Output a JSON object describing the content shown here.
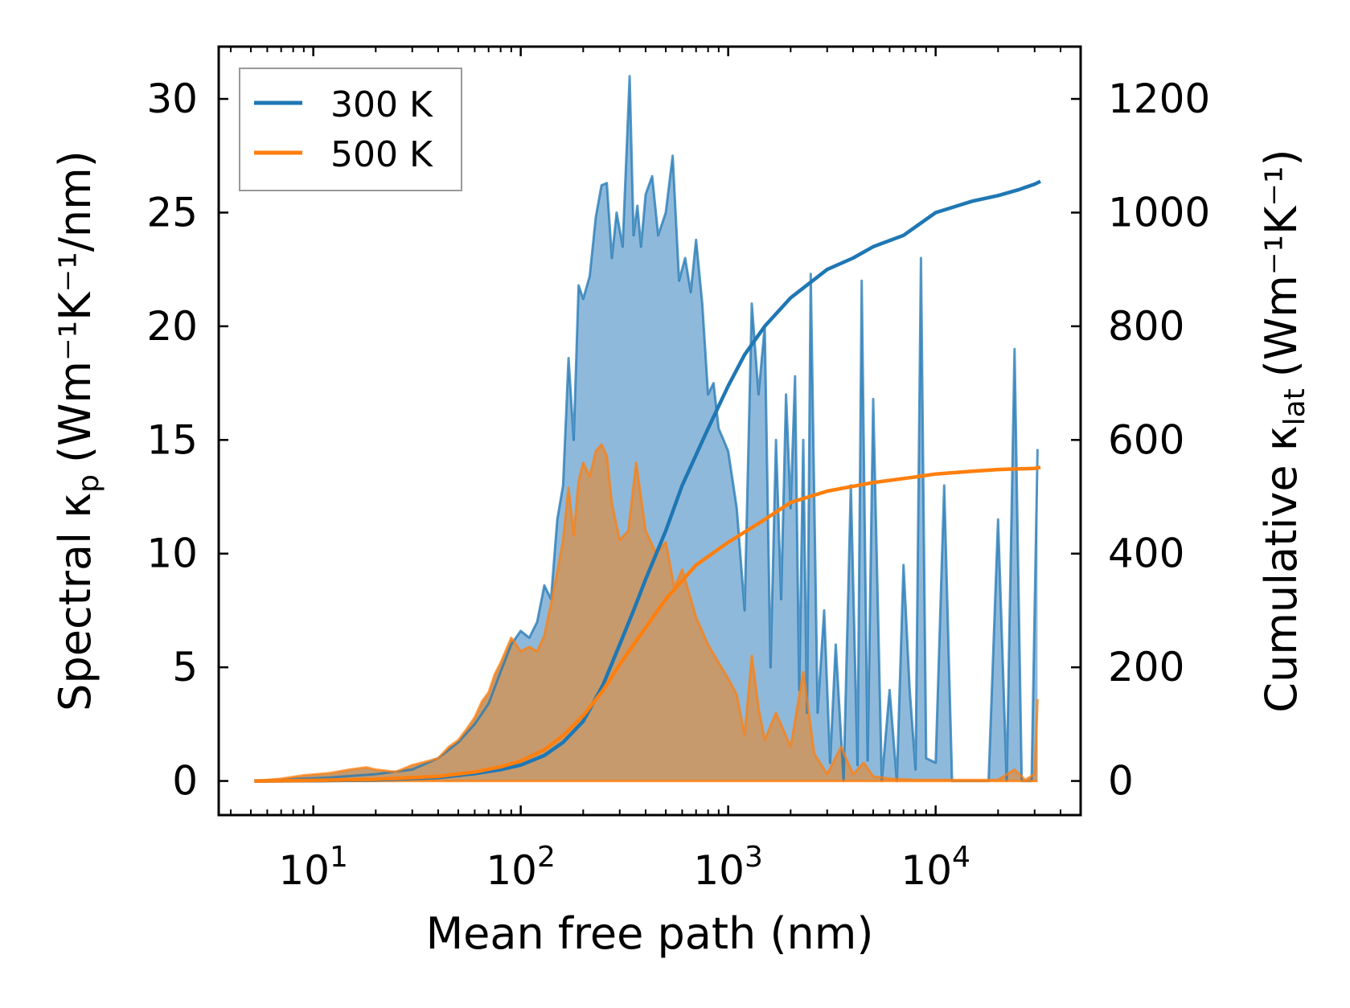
{
  "chart_data": {
    "type": "line",
    "xscale": "log",
    "xlabel": "Mean free path (nm)",
    "ylabel_left_main": "Spectral κ",
    "ylabel_left_sub": "p",
    "ylabel_left_units": "(Wm⁻¹K⁻¹/nm)",
    "ylabel_right_main": "Cumulative κ",
    "ylabel_right_sub": "lat",
    "ylabel_right_units": "(Wm⁻¹K⁻¹)",
    "xlim": [
      3.5,
      50000
    ],
    "ylim_left": [
      -1.5,
      32.3
    ],
    "ylim_right": [
      -60,
      1292
    ],
    "x_ticks": [
      {
        "value": 10,
        "base": "10",
        "exp": "1"
      },
      {
        "value": 100,
        "base": "10",
        "exp": "2"
      },
      {
        "value": 1000,
        "base": "10",
        "exp": "3"
      },
      {
        "value": 10000,
        "base": "10",
        "exp": "4"
      }
    ],
    "left_ticks": [
      0,
      5,
      10,
      15,
      20,
      25,
      30
    ],
    "right_ticks": [
      0,
      200,
      400,
      600,
      800,
      1000,
      1200
    ],
    "legend": {
      "position": "upper-left",
      "entries": [
        {
          "label": "300 K",
          "color": "#1f77b4"
        },
        {
          "label": "500 K",
          "color": "#ff7f0e"
        }
      ]
    },
    "series": [
      {
        "name": "300 K",
        "color": "#1f77b4",
        "spectral": [
          [
            5.2,
            0
          ],
          [
            8,
            0.08
          ],
          [
            12,
            0.15
          ],
          [
            20,
            0.3
          ],
          [
            30,
            0.5
          ],
          [
            40,
            1.0
          ],
          [
            50,
            1.7
          ],
          [
            60,
            2.5
          ],
          [
            70,
            3.4
          ],
          [
            80,
            4.8
          ],
          [
            90,
            6.0
          ],
          [
            100,
            6.6
          ],
          [
            110,
            6.3
          ],
          [
            120,
            7.0
          ],
          [
            130,
            8.6
          ],
          [
            140,
            8.0
          ],
          [
            150,
            11.5
          ],
          [
            160,
            13.0
          ],
          [
            170,
            18.6
          ],
          [
            180,
            15.0
          ],
          [
            190,
            21.8
          ],
          [
            200,
            21.2
          ],
          [
            215,
            22.2
          ],
          [
            230,
            24.8
          ],
          [
            245,
            26.2
          ],
          [
            260,
            26.3
          ],
          [
            275,
            23.0
          ],
          [
            290,
            25.0
          ],
          [
            310,
            23.5
          ],
          [
            335,
            31.0
          ],
          [
            350,
            24.0
          ],
          [
            365,
            25.3
          ],
          [
            380,
            23.5
          ],
          [
            400,
            25.8
          ],
          [
            430,
            26.6
          ],
          [
            460,
            24.0
          ],
          [
            500,
            25.0
          ],
          [
            540,
            27.5
          ],
          [
            580,
            22.0
          ],
          [
            620,
            23.0
          ],
          [
            660,
            21.5
          ],
          [
            700,
            23.8
          ],
          [
            750,
            21.0
          ],
          [
            800,
            17.0
          ],
          [
            850,
            17.5
          ],
          [
            900,
            15.5
          ],
          [
            950,
            15.0
          ],
          [
            1000,
            14.5
          ],
          [
            1100,
            12.0
          ],
          [
            1200,
            7.5
          ],
          [
            1300,
            21.0
          ],
          [
            1400,
            17.0
          ],
          [
            1500,
            20.0
          ],
          [
            1600,
            5.0
          ],
          [
            1700,
            15.0
          ],
          [
            1800,
            8.0
          ],
          [
            1900,
            17.0
          ],
          [
            2000,
            12.0
          ],
          [
            2100,
            17.8
          ],
          [
            2200,
            4.0
          ],
          [
            2300,
            15.0
          ],
          [
            2400,
            3.0
          ],
          [
            2500,
            22.3
          ],
          [
            2700,
            3.0
          ],
          [
            2900,
            7.5
          ],
          [
            3100,
            0.8
          ],
          [
            3300,
            6.0
          ],
          [
            3600,
            0
          ],
          [
            3900,
            13.0
          ],
          [
            4200,
            0.7
          ],
          [
            4400,
            22.0
          ],
          [
            4700,
            0.9
          ],
          [
            5000,
            16.8
          ],
          [
            5500,
            0
          ],
          [
            6000,
            4.0
          ],
          [
            6500,
            0
          ],
          [
            7000,
            9.5
          ],
          [
            7500,
            4.0
          ],
          [
            8000,
            0.5
          ],
          [
            8500,
            23.0
          ],
          [
            9000,
            1.0
          ],
          [
            10000,
            0.8
          ],
          [
            11000,
            13.0
          ],
          [
            12000,
            0
          ],
          [
            15000,
            0
          ],
          [
            18000,
            0
          ],
          [
            20000,
            11.5
          ],
          [
            22000,
            0
          ],
          [
            24000,
            19.0
          ],
          [
            26000,
            0
          ],
          [
            29000,
            0
          ],
          [
            31000,
            14.6
          ]
        ],
        "cumulative": [
          [
            5.2,
            0
          ],
          [
            10,
            0.5
          ],
          [
            20,
            2
          ],
          [
            40,
            6
          ],
          [
            60,
            13
          ],
          [
            80,
            20
          ],
          [
            100,
            28
          ],
          [
            130,
            45
          ],
          [
            160,
            68
          ],
          [
            200,
            105
          ],
          [
            250,
            170
          ],
          [
            300,
            240
          ],
          [
            350,
            300
          ],
          [
            400,
            355
          ],
          [
            500,
            440
          ],
          [
            600,
            520
          ],
          [
            800,
            620
          ],
          [
            1000,
            695
          ],
          [
            1200,
            750
          ],
          [
            1500,
            800
          ],
          [
            2000,
            850
          ],
          [
            3000,
            900
          ],
          [
            4000,
            920
          ],
          [
            5000,
            940
          ],
          [
            7000,
            960
          ],
          [
            10000,
            1000
          ],
          [
            15000,
            1020
          ],
          [
            20000,
            1030
          ],
          [
            25000,
            1040
          ],
          [
            30000,
            1050
          ],
          [
            32000,
            1055
          ]
        ]
      },
      {
        "name": "500 K",
        "color": "#ff7f0e",
        "spectral": [
          [
            5.2,
            0
          ],
          [
            7,
            0.1
          ],
          [
            9,
            0.25
          ],
          [
            12,
            0.35
          ],
          [
            15,
            0.5
          ],
          [
            18,
            0.6
          ],
          [
            20,
            0.5
          ],
          [
            25,
            0.4
          ],
          [
            30,
            0.7
          ],
          [
            35,
            0.85
          ],
          [
            40,
            1.0
          ],
          [
            45,
            1.5
          ],
          [
            50,
            1.8
          ],
          [
            55,
            2.3
          ],
          [
            60,
            2.8
          ],
          [
            65,
            3.5
          ],
          [
            70,
            3.9
          ],
          [
            75,
            4.7
          ],
          [
            80,
            5.2
          ],
          [
            90,
            6.3
          ],
          [
            100,
            5.7
          ],
          [
            110,
            5.9
          ],
          [
            120,
            5.7
          ],
          [
            130,
            6.4
          ],
          [
            140,
            7.8
          ],
          [
            150,
            9.2
          ],
          [
            160,
            10.6
          ],
          [
            170,
            12.9
          ],
          [
            180,
            10.8
          ],
          [
            190,
            13.2
          ],
          [
            200,
            14.0
          ],
          [
            215,
            13.4
          ],
          [
            230,
            14.5
          ],
          [
            245,
            14.8
          ],
          [
            260,
            14.3
          ],
          [
            275,
            12.2
          ],
          [
            300,
            10.6
          ],
          [
            330,
            11.0
          ],
          [
            360,
            14.0
          ],
          [
            400,
            11.0
          ],
          [
            450,
            10.0
          ],
          [
            500,
            10.5
          ],
          [
            550,
            8.5
          ],
          [
            600,
            9.3
          ],
          [
            700,
            7.2
          ],
          [
            800,
            6.0
          ],
          [
            900,
            5.2
          ],
          [
            1000,
            4.5
          ],
          [
            1100,
            3.8
          ],
          [
            1200,
            2.0
          ],
          [
            1300,
            5.5
          ],
          [
            1400,
            3.2
          ],
          [
            1500,
            1.8
          ],
          [
            1700,
            3.0
          ],
          [
            2000,
            1.5
          ],
          [
            2300,
            4.8
          ],
          [
            2600,
            1.2
          ],
          [
            3000,
            0.3
          ],
          [
            3500,
            1.5
          ],
          [
            4000,
            0.3
          ],
          [
            4500,
            0.8
          ],
          [
            5000,
            0.2
          ],
          [
            6000,
            0.1
          ],
          [
            8000,
            0.05
          ],
          [
            10000,
            0.05
          ],
          [
            20000,
            0.05
          ],
          [
            24000,
            0.5
          ],
          [
            27000,
            0.05
          ],
          [
            30000,
            0.3
          ],
          [
            31000,
            3.6
          ]
        ],
        "cumulative": [
          [
            5.2,
            0
          ],
          [
            10,
            1
          ],
          [
            20,
            3
          ],
          [
            40,
            8
          ],
          [
            60,
            16
          ],
          [
            80,
            25
          ],
          [
            100,
            35
          ],
          [
            130,
            55
          ],
          [
            160,
            80
          ],
          [
            200,
            115
          ],
          [
            250,
            160
          ],
          [
            300,
            205
          ],
          [
            400,
            270
          ],
          [
            500,
            320
          ],
          [
            700,
            380
          ],
          [
            1000,
            420
          ],
          [
            1500,
            460
          ],
          [
            2000,
            490
          ],
          [
            3000,
            510
          ],
          [
            5000,
            525
          ],
          [
            8000,
            535
          ],
          [
            10000,
            540
          ],
          [
            15000,
            545
          ],
          [
            20000,
            548
          ],
          [
            30000,
            550
          ],
          [
            32000,
            552
          ]
        ]
      }
    ]
  }
}
